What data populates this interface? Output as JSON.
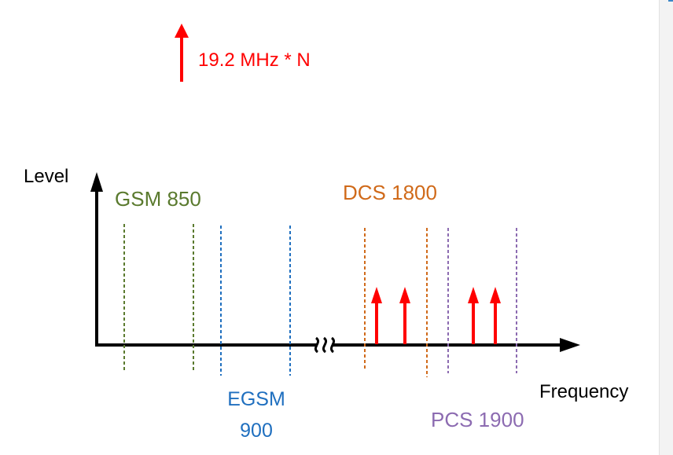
{
  "legend": {
    "label": "19.2 MHz * N"
  },
  "axes": {
    "y_label": "Level",
    "x_label": "Frequency"
  },
  "bands": {
    "gsm850": {
      "label": "GSM 850",
      "color": "#5a7a2e"
    },
    "egsm900": {
      "label_line1": "EGSM",
      "label_line2": "900",
      "color": "#1f6fbf"
    },
    "dcs1800": {
      "label": "DCS 1800",
      "color": "#d06a1a"
    },
    "pcs1900": {
      "label": "PCS 1900",
      "color": "#8c6bb1"
    }
  },
  "colors": {
    "harmonic_arrow": "#ff0000",
    "axis": "#000000"
  },
  "icons": {
    "axis_break": "break-icon"
  }
}
